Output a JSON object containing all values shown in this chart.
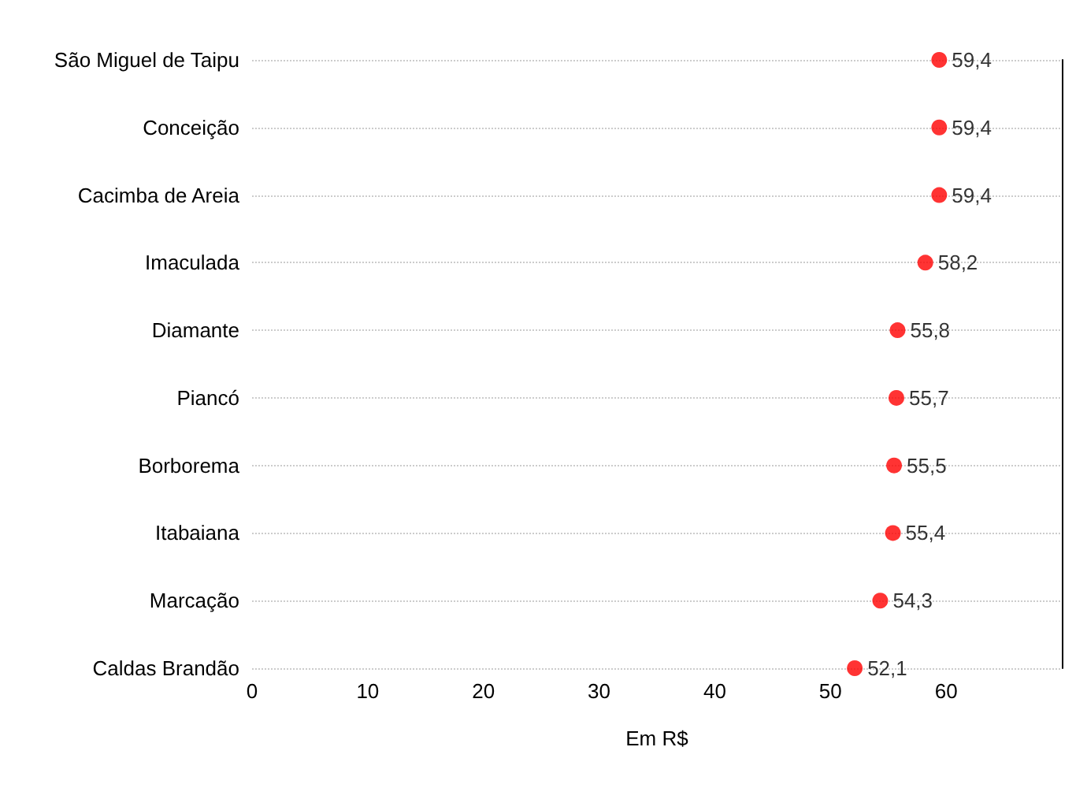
{
  "chart_data": {
    "type": "scatter",
    "orientation": "horizontal",
    "xlabel": "Em R$",
    "categories": [
      "São Miguel de Taipu",
      "Conceição",
      "Cacimba de Areia",
      "Imaculada",
      "Diamante",
      "Piancó",
      "Borborema",
      "Itabaiana",
      "Marcação",
      "Caldas Brandão"
    ],
    "values": [
      59.4,
      59.4,
      59.4,
      58.2,
      55.8,
      55.7,
      55.5,
      55.4,
      54.3,
      52.1
    ],
    "value_labels": [
      "59,4",
      "59,4",
      "59,4",
      "58,2",
      "55,8",
      "55,7",
      "55,5",
      "55,4",
      "54,3",
      "52,1"
    ],
    "color": "#ff0000",
    "marker": "circle",
    "xlim": [
      0,
      70
    ],
    "xticks": [
      0,
      10,
      20,
      30,
      40,
      50,
      60
    ],
    "grid": "y"
  }
}
